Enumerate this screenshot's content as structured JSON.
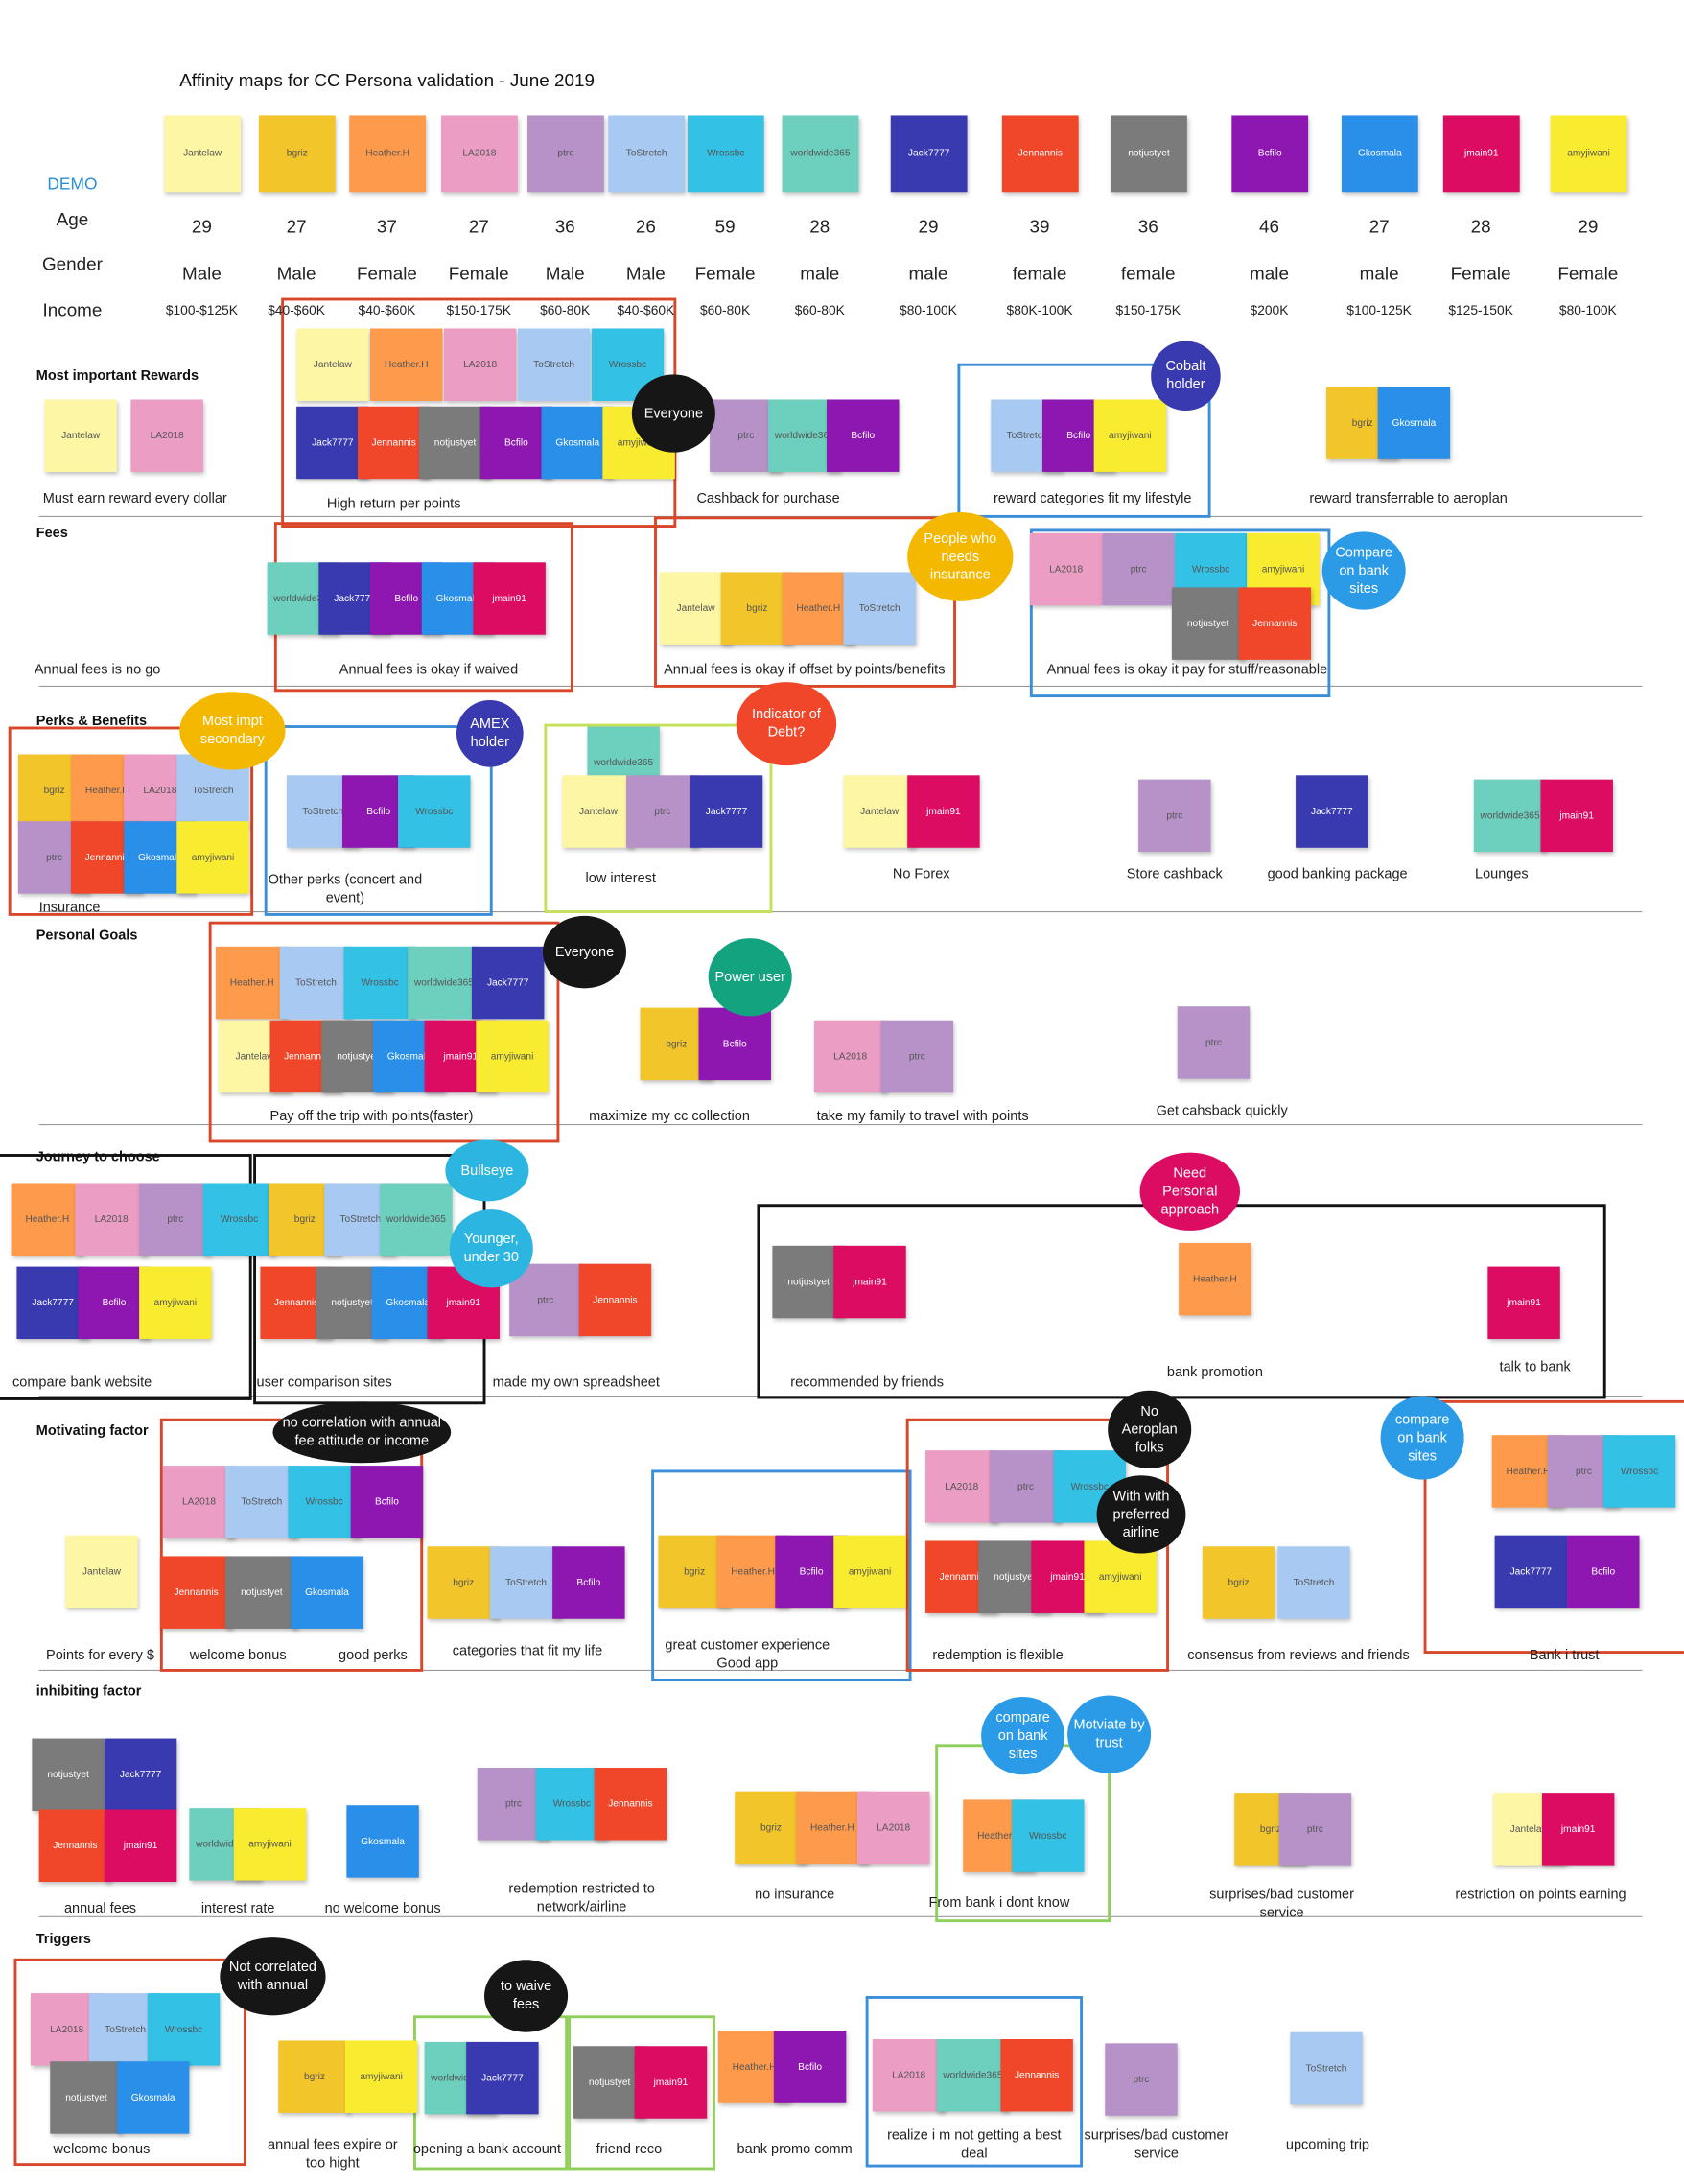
{
  "title": "Affinity maps for CC Persona validation - June 2019",
  "demo": {
    "label": "DEMO",
    "rows": [
      "Age",
      "Gender",
      "Income"
    ],
    "personas": [
      {
        "name": "Jantelaw",
        "color": "#fdf6a5",
        "age": 29,
        "gender": "Male",
        "income": "$100-$125K"
      },
      {
        "name": "bgriz",
        "color": "#f2c52b",
        "age": 27,
        "gender": "Male",
        "income": "$40-$60K"
      },
      {
        "name": "Heather.H",
        "color": "#fd9a4b",
        "age": 37,
        "gender": "Female",
        "income": "$40-$60K"
      },
      {
        "name": "LA2018",
        "color": "#eb9dc3",
        "age": 27,
        "gender": "Female",
        "income": "$150-175K"
      },
      {
        "name": "ptrc",
        "color": "#b792c9",
        "age": 36,
        "gender": "Male",
        "income": "$60-80K"
      },
      {
        "name": "ToStretch",
        "color": "#a8caf2",
        "age": 26,
        "gender": "Male",
        "income": "$40-$60K"
      },
      {
        "name": "Wrossbc",
        "color": "#33c1e5",
        "age": 59,
        "gender": "Female",
        "income": "$60-80K"
      },
      {
        "name": "worldwide365",
        "color": "#6dcfbe",
        "age": 28,
        "gender": "male",
        "income": "$60-80K"
      },
      {
        "name": "Jack7777",
        "color": "#3a3ab0",
        "age": 29,
        "gender": "male",
        "income": "$80-100K"
      },
      {
        "name": "Jennannis",
        "color": "#f0472b",
        "age": 39,
        "gender": "female",
        "income": "$80K-100K"
      },
      {
        "name": "notjustyet",
        "color": "#7b7b7b",
        "age": 36,
        "gender": "female",
        "income": "$150-175K"
      },
      {
        "name": "Bcfilo",
        "color": "#8d17b0",
        "age": 46,
        "gender": "male",
        "income": "$200K"
      },
      {
        "name": "Gkosmala",
        "color": "#2a8fe8",
        "age": 27,
        "gender": "male",
        "income": "$100-125K"
      },
      {
        "name": "jmain91",
        "color": "#dc0c62",
        "age": 28,
        "gender": "Female",
        "income": "$125-150K"
      },
      {
        "name": "amyjiwani",
        "color": "#f9ec30",
        "age": 29,
        "gender": "Female",
        "income": "$80-100K"
      }
    ]
  },
  "sections": [
    {
      "title": "Most important Rewards",
      "groups": [
        {
          "label": "Must earn reward every dollar",
          "notes": [
            "Jantelaw",
            "LA2018"
          ]
        },
        {
          "label": "High return per points",
          "notes": [
            "Jantelaw",
            "Heather.H",
            "LA2018",
            "ToStretch",
            "Wrossbc",
            "Jack7777",
            "Jennannis",
            "notjustyet",
            "Bcfilo",
            "Gkosmala",
            "amyjiwani"
          ]
        },
        {
          "label": "Cashback for purchase",
          "notes": [
            "ptrc",
            "worldwide365",
            "Bcfilo"
          ]
        },
        {
          "label": "reward categories fit my lifestyle",
          "notes": [
            "ToStretch",
            "Bcfilo",
            "amyjiwani"
          ]
        },
        {
          "label": "reward transferrable to aeroplan",
          "notes": [
            "bgriz",
            "Gkosmala"
          ]
        }
      ]
    },
    {
      "title": "Fees",
      "groups": [
        {
          "label": "Annual fees is no go",
          "notes": []
        },
        {
          "label": "Annual fees is okay if waived",
          "notes": [
            "worldwide365",
            "Jack7777",
            "Bcfilo",
            "Gkosmala",
            "jmain91"
          ]
        },
        {
          "label": "Annual fees is okay if offset by points/benefits",
          "notes": [
            "Jantelaw",
            "bgriz",
            "Heather.H",
            "ToStretch"
          ]
        },
        {
          "label": "Annual fees is okay it pay for stuff/reasonable",
          "notes": [
            "LA2018",
            "ptrc",
            "Wrossbc",
            "amyjiwani",
            "notjustyet",
            "Jennannis"
          ]
        }
      ]
    },
    {
      "title": "Perks & Benefits",
      "groups": [
        {
          "label": "Insurance",
          "notes": [
            "bgriz",
            "Heather.H",
            "LA2018",
            "ToStretch",
            "ptrc",
            "Jennannis",
            "Gkosmala",
            "amyjiwani"
          ]
        },
        {
          "label": "Other perks (concert and event)",
          "notes": [
            "ToStretch",
            "Bcfilo",
            "Wrossbc"
          ]
        },
        {
          "label": "low interest",
          "notes": [
            "worldwide365",
            "Jantelaw",
            "ptrc",
            "Jack7777"
          ]
        },
        {
          "label": "No Forex",
          "notes": [
            "Jantelaw",
            "jmain91"
          ]
        },
        {
          "label": "Store cashback",
          "notes": [
            "ptrc"
          ]
        },
        {
          "label": "good banking package",
          "notes": [
            "Jack7777"
          ]
        },
        {
          "label": "Lounges",
          "notes": [
            "worldwide365",
            "jmain91"
          ]
        }
      ]
    },
    {
      "title": "Personal Goals",
      "groups": [
        {
          "label": "Pay off the trip with points(faster)",
          "notes": [
            "Heather.H",
            "ToStretch",
            "Wrossbc",
            "worldwide365",
            "Jack7777",
            "Jantelaw",
            "Jennannis",
            "notjustyet",
            "Gkosmala",
            "jmain91",
            "amyjiwani"
          ]
        },
        {
          "label": "maximize my cc collection",
          "notes": [
            "bgriz",
            "Bcfilo"
          ]
        },
        {
          "label": "take my family to travel with points",
          "notes": [
            "LA2018",
            "ptrc"
          ]
        },
        {
          "label": "Get cahsback quickly",
          "notes": [
            "ptrc"
          ]
        }
      ]
    },
    {
      "title": "Journey to choose",
      "groups": [
        {
          "label": "compare bank website",
          "notes": [
            "Heather.H",
            "LA2018",
            "ptrc",
            "Wrossbc",
            "Jack7777",
            "Bcfilo",
            "amyjiwani"
          ]
        },
        {
          "label": "user comparison sites",
          "notes": [
            "bgriz",
            "ToStretch",
            "worldwide365",
            "Jennannis",
            "notjustyet",
            "Gkosmala",
            "jmain91"
          ]
        },
        {
          "label": "made my own spreadsheet",
          "notes": [
            "ptrc",
            "Jennannis"
          ]
        },
        {
          "label": "recommended by friends",
          "notes": [
            "notjustyet",
            "jmain91"
          ]
        },
        {
          "label": "bank promotion",
          "notes": [
            "Heather.H"
          ]
        },
        {
          "label": "talk to bank",
          "notes": [
            "jmain91"
          ]
        }
      ]
    },
    {
      "title": "Motivating factor",
      "groups": [
        {
          "label": "Points for every $",
          "notes": [
            "Jantelaw"
          ]
        },
        {
          "label": "welcome bonus",
          "notes": [
            "LA2018",
            "ToStretch",
            "Wrossbc",
            "Bcfilo",
            "Jennannis",
            "notjustyet",
            "Gkosmala"
          ]
        },
        {
          "label": "good perks",
          "notes": []
        },
        {
          "label": "categories that fit my life",
          "notes": [
            "bgriz",
            "ToStretch",
            "Bcfilo"
          ]
        },
        {
          "label": "great customer experience Good app",
          "notes": [
            "bgriz",
            "Heather.H",
            "Bcfilo",
            "amyjiwani"
          ]
        },
        {
          "label": "redemption is flexible",
          "notes": [
            "LA2018",
            "ptrc",
            "Wrossbc",
            "Jennannis",
            "notjustyet",
            "jmain91",
            "amyjiwani"
          ]
        },
        {
          "label": "consensus from reviews and friends",
          "notes": [
            "bgriz",
            "ToStretch"
          ]
        },
        {
          "label": "Bank i trust",
          "notes": [
            "Heather.H",
            "ptrc",
            "Wrossbc",
            "Jack7777",
            "Bcfilo"
          ]
        }
      ]
    },
    {
      "title": "inhibiting factor",
      "groups": [
        {
          "label": "annual fees",
          "notes": [
            "notjustyet",
            "Jack7777",
            "Jennannis",
            "jmain91"
          ]
        },
        {
          "label": "interest rate",
          "notes": [
            "worldwide365",
            "amyjiwani"
          ]
        },
        {
          "label": "no welcome bonus",
          "notes": [
            "Gkosmala"
          ]
        },
        {
          "label": "redemption restricted to network/airline",
          "notes": [
            "ptrc",
            "Wrossbc",
            "Jennannis"
          ]
        },
        {
          "label": "no insurance",
          "notes": [
            "bgriz",
            "Heather.H",
            "LA2018"
          ]
        },
        {
          "label": "From bank i dont know",
          "notes": [
            "Heather.H",
            "Wrossbc"
          ]
        },
        {
          "label": "surprises/bad customer service",
          "notes": [
            "bgriz",
            "ptrc"
          ]
        },
        {
          "label": "restriction on points earning",
          "notes": [
            "Jantelaw",
            "jmain91"
          ]
        }
      ]
    },
    {
      "title": "Triggers",
      "groups": [
        {
          "label": "welcome bonus",
          "notes": [
            "LA2018",
            "ToStretch",
            "Wrossbc",
            "notjustyet",
            "Gkosmala"
          ]
        },
        {
          "label": "annual fees expire or too hight",
          "notes": [
            "bgriz",
            "amyjiwani"
          ]
        },
        {
          "label": "opening a bank account",
          "notes": [
            "worldwide365",
            "Jack7777"
          ]
        },
        {
          "label": "friend reco",
          "notes": [
            "notjustyet",
            "jmain91"
          ]
        },
        {
          "label": "bank promo comm",
          "notes": [
            "Heather.H",
            "Bcfilo"
          ]
        },
        {
          "label": "realize i m not getting a best deal",
          "notes": [
            "LA2018",
            "worldwide365",
            "Jennannis"
          ]
        },
        {
          "label": "surprises/bad customer service",
          "notes": [
            "ptrc"
          ]
        },
        {
          "label": "upcoming trip",
          "notes": [
            "ToStretch"
          ]
        }
      ]
    }
  ],
  "annotations": [
    {
      "text": "Everyone",
      "color": "#161616"
    },
    {
      "text": "Cobalt holder",
      "color": "#3a3ab0"
    },
    {
      "text": "People who needs insurance",
      "color": "#f5b800"
    },
    {
      "text": "Compare on bank sites",
      "color": "#2b9be8"
    },
    {
      "text": "Most impt secondary",
      "color": "#f5b800"
    },
    {
      "text": "AMEX holder",
      "color": "#3a3ab0"
    },
    {
      "text": "Indicator of Debt?",
      "color": "#f0472b"
    },
    {
      "text": "Everyone",
      "color": "#161616"
    },
    {
      "text": "Power user",
      "color": "#14a37f"
    },
    {
      "text": "Bullseye",
      "color": "#2bb5e0"
    },
    {
      "text": "Younger, under 30",
      "color": "#2bb5e0"
    },
    {
      "text": "Need Personal approach",
      "color": "#dc0c62"
    },
    {
      "text": "no correlation with annual fee attitude or income",
      "color": "#161616"
    },
    {
      "text": "No Aeroplan folks",
      "color": "#161616"
    },
    {
      "text": "With with preferred airline",
      "color": "#161616"
    },
    {
      "text": "compare on bank sites",
      "color": "#2b9be8"
    },
    {
      "text": "compare on bank sites",
      "color": "#2b9be8"
    },
    {
      "text": "Motviate by trust",
      "color": "#2b9be8"
    },
    {
      "text": "Not correlated with annual",
      "color": "#161616"
    },
    {
      "text": "to waive fees",
      "color": "#161616"
    }
  ]
}
